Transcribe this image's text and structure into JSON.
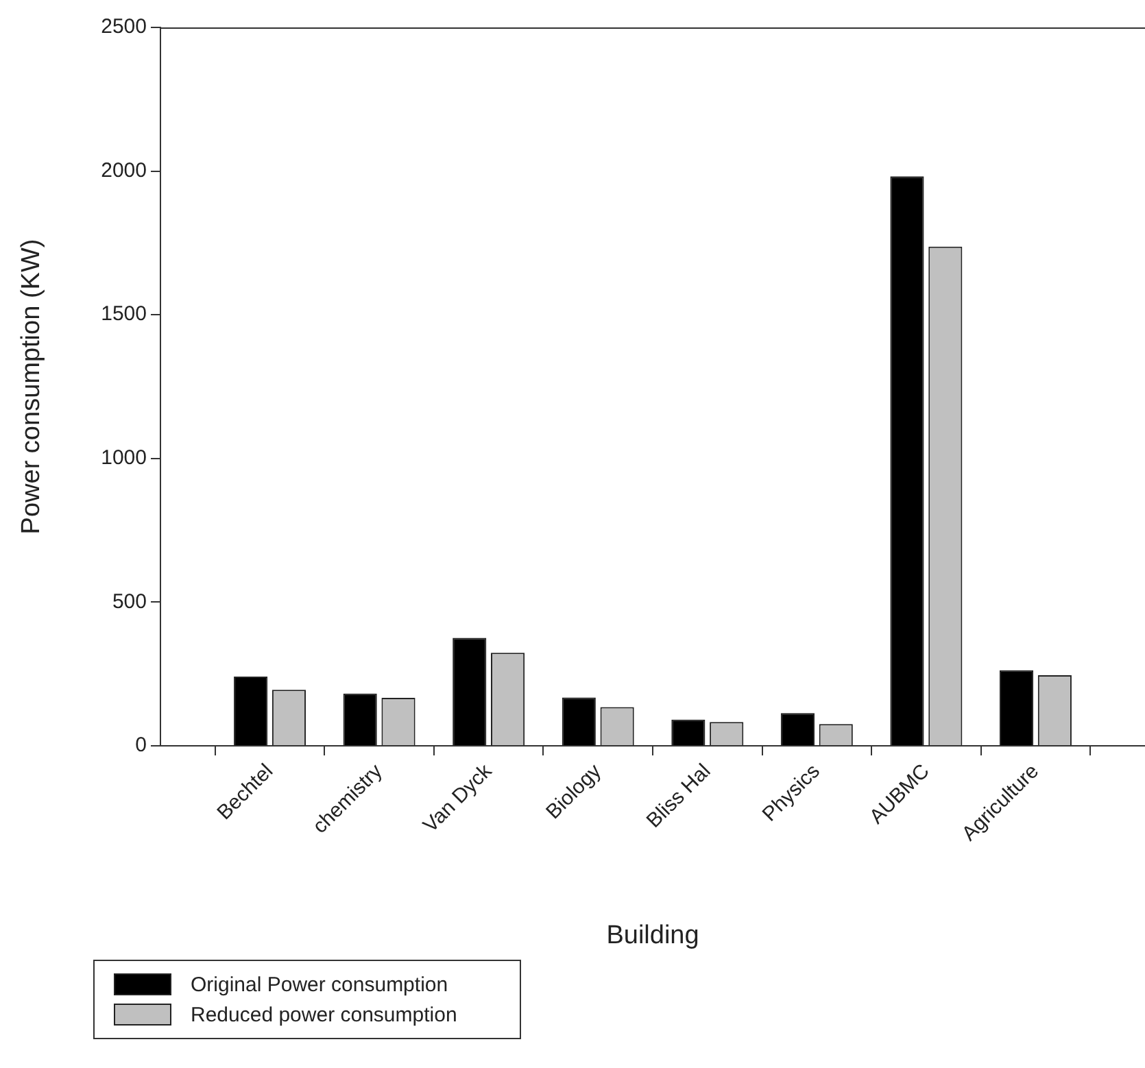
{
  "chart_data": {
    "type": "bar",
    "xlabel": "Building",
    "ylabel": "Power consumption (KW)",
    "categories": [
      "Bechtel",
      "chemistry",
      "Van Dyck",
      "Biology",
      "Bliss Hal",
      "Physics",
      "AUBMC",
      "Agriculture"
    ],
    "series": [
      {
        "name": "Original Power consumption",
        "color": "#000000",
        "values": [
          241,
          182,
          376,
          168,
          91,
          114,
          1982,
          263
        ]
      },
      {
        "name": "Reduced power consumption",
        "color": "#c0c0c0",
        "values": [
          195,
          167,
          324,
          135,
          83,
          76,
          1737,
          246
        ]
      }
    ],
    "ylim": [
      0,
      2500
    ],
    "yticks": [
      0,
      500,
      1000,
      1500,
      2000,
      2500
    ],
    "grid": false,
    "legend": "bottom left"
  }
}
